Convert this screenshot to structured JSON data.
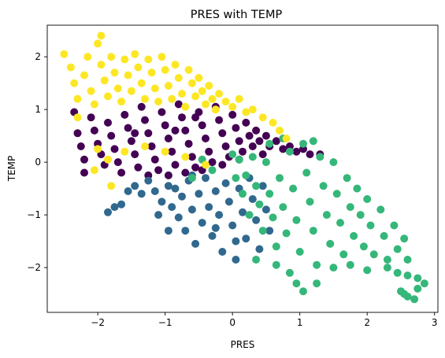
{
  "chart_data": {
    "type": "scatter",
    "title": "PRES with TEMP",
    "xlabel": "PRES",
    "ylabel": "TEMP",
    "xlim": [
      -2.75,
      3.05
    ],
    "ylim": [
      -2.85,
      2.6
    ],
    "xticks": [
      -2,
      -1,
      0,
      1,
      2,
      3
    ],
    "yticks": [
      -2,
      -1,
      0,
      1,
      2
    ],
    "xtick_labels": [
      "−2",
      "−1",
      "0",
      "1",
      "2",
      "3"
    ],
    "ytick_labels": [
      "−2",
      "−1",
      "0",
      "1",
      "2"
    ],
    "grid": false,
    "legend": "none",
    "series": [
      {
        "color": "#440154",
        "points": [
          [
            -2.35,
            0.95
          ],
          [
            -2.3,
            0.55
          ],
          [
            -2.25,
            0.3
          ],
          [
            -2.2,
            0.05
          ],
          [
            -2.2,
            -0.2
          ],
          [
            -2.1,
            0.85
          ],
          [
            -2.05,
            0.6
          ],
          [
            -2.0,
            0.35
          ],
          [
            -1.95,
            0.15
          ],
          [
            -1.9,
            -0.05
          ],
          [
            -1.85,
            0.75
          ],
          [
            -1.8,
            0.5
          ],
          [
            -1.75,
            0.25
          ],
          [
            -1.7,
            0.0
          ],
          [
            -1.65,
            -0.2
          ],
          [
            -1.6,
            0.9
          ],
          [
            -1.55,
            0.65
          ],
          [
            -1.5,
            0.4
          ],
          [
            -1.45,
            0.15
          ],
          [
            -1.4,
            -0.1
          ],
          [
            -1.35,
            1.05
          ],
          [
            -1.3,
            0.8
          ],
          [
            -1.25,
            0.55
          ],
          [
            -1.2,
            0.3
          ],
          [
            -1.15,
            0.05
          ],
          [
            -1.1,
            -0.15
          ],
          [
            -1.05,
            0.95
          ],
          [
            -1.0,
            0.7
          ],
          [
            -0.95,
            0.45
          ],
          [
            -0.9,
            0.2
          ],
          [
            -0.85,
            -0.05
          ],
          [
            -0.8,
            1.1
          ],
          [
            -0.75,
            0.85
          ],
          [
            -0.7,
            0.6
          ],
          [
            -0.65,
            0.35
          ],
          [
            -0.6,
            0.1
          ],
          [
            -0.55,
            -0.1
          ],
          [
            -0.5,
            0.95
          ],
          [
            -0.45,
            0.7
          ],
          [
            -0.4,
            0.45
          ],
          [
            -0.35,
            0.2
          ],
          [
            -0.3,
            0.0
          ],
          [
            -0.25,
            1.05
          ],
          [
            -0.2,
            0.8
          ],
          [
            -0.15,
            0.55
          ],
          [
            -0.1,
            0.3
          ],
          [
            -0.05,
            0.1
          ],
          [
            0.0,
            0.9
          ],
          [
            0.05,
            0.65
          ],
          [
            0.1,
            0.4
          ],
          [
            0.15,
            0.2
          ],
          [
            0.2,
            0.75
          ],
          [
            0.25,
            0.5
          ],
          [
            0.3,
            0.3
          ],
          [
            0.35,
            0.6
          ],
          [
            0.4,
            0.4
          ],
          [
            0.5,
            0.5
          ],
          [
            0.55,
            0.3
          ],
          [
            0.65,
            0.4
          ],
          [
            0.75,
            0.25
          ],
          [
            0.85,
            0.3
          ],
          [
            0.95,
            0.2
          ],
          [
            1.05,
            0.25
          ],
          [
            1.15,
            0.15
          ],
          [
            1.3,
            0.15
          ],
          [
            -0.7,
            -0.2
          ],
          [
            -0.45,
            -0.15
          ],
          [
            -0.15,
            -0.05
          ],
          [
            -1.25,
            -0.25
          ],
          [
            -0.95,
            -0.25
          ],
          [
            -0.55,
            0.85
          ],
          [
            -0.85,
            0.6
          ],
          [
            -1.45,
            0.55
          ],
          [
            0.1,
            0.05
          ],
          [
            0.45,
            0.15
          ]
        ]
      },
      {
        "color": "#31688e",
        "points": [
          [
            -1.85,
            -0.95
          ],
          [
            -1.75,
            -0.85
          ],
          [
            -1.65,
            -0.8
          ],
          [
            -1.55,
            -0.55
          ],
          [
            -1.45,
            -0.45
          ],
          [
            -1.35,
            -0.6
          ],
          [
            -1.25,
            -0.35
          ],
          [
            -1.15,
            -0.55
          ],
          [
            -1.05,
            -0.75
          ],
          [
            -0.95,
            -1.3
          ],
          [
            -0.9,
            -0.85
          ],
          [
            -0.85,
            -0.5
          ],
          [
            -0.8,
            -1.05
          ],
          [
            -0.75,
            -0.65
          ],
          [
            -0.7,
            -1.3
          ],
          [
            -0.65,
            -0.35
          ],
          [
            -0.6,
            -0.9
          ],
          [
            -0.55,
            -1.55
          ],
          [
            -0.5,
            -0.6
          ],
          [
            -0.45,
            -1.15
          ],
          [
            -0.4,
            -0.3
          ],
          [
            -0.35,
            -0.85
          ],
          [
            -0.3,
            -1.4
          ],
          [
            -0.25,
            -0.55
          ],
          [
            -0.2,
            -1.0
          ],
          [
            -0.15,
            -1.7
          ],
          [
            -0.1,
            -0.4
          ],
          [
            -0.05,
            -0.75
          ],
          [
            0.0,
            -1.2
          ],
          [
            0.05,
            -1.85
          ],
          [
            0.1,
            -0.5
          ],
          [
            0.15,
            -0.95
          ],
          [
            0.2,
            -1.45
          ],
          [
            0.25,
            -0.3
          ],
          [
            0.3,
            -0.7
          ],
          [
            0.35,
            -1.1
          ],
          [
            0.4,
            -1.65
          ],
          [
            0.45,
            -0.45
          ],
          [
            0.5,
            -0.9
          ],
          [
            0.55,
            -1.3
          ],
          [
            -0.95,
            -0.45
          ],
          [
            -0.6,
            -0.25
          ],
          [
            -1.1,
            -1.0
          ],
          [
            -0.25,
            -1.25
          ],
          [
            0.05,
            -1.5
          ]
        ]
      },
      {
        "color": "#35b779",
        "points": [
          [
            -0.6,
            -0.3
          ],
          [
            -0.45,
            0.05
          ],
          [
            -0.3,
            -0.15
          ],
          [
            0.0,
            0.15
          ],
          [
            0.05,
            -0.3
          ],
          [
            0.1,
            0.05
          ],
          [
            0.15,
            -0.6
          ],
          [
            0.2,
            -0.25
          ],
          [
            0.25,
            -1.0
          ],
          [
            0.3,
            0.1
          ],
          [
            0.35,
            -0.45
          ],
          [
            0.4,
            -0.8
          ],
          [
            0.45,
            -1.3
          ],
          [
            0.5,
            0.0
          ],
          [
            0.55,
            -0.6
          ],
          [
            0.6,
            -1.05
          ],
          [
            0.65,
            -1.6
          ],
          [
            0.7,
            -0.3
          ],
          [
            0.75,
            -0.85
          ],
          [
            0.8,
            -1.35
          ],
          [
            0.85,
            0.2
          ],
          [
            0.9,
            -0.5
          ],
          [
            0.95,
            -1.1
          ],
          [
            1.0,
            -1.7
          ],
          [
            1.05,
            0.35
          ],
          [
            1.1,
            -0.2
          ],
          [
            1.15,
            -0.75
          ],
          [
            1.2,
            -1.3
          ],
          [
            1.25,
            -1.95
          ],
          [
            1.3,
            0.1
          ],
          [
            1.35,
            -0.45
          ],
          [
            1.4,
            -1.0
          ],
          [
            1.45,
            -1.55
          ],
          [
            1.5,
            0.0
          ],
          [
            1.55,
            -0.6
          ],
          [
            1.6,
            -1.15
          ],
          [
            1.65,
            -1.75
          ],
          [
            1.7,
            -0.3
          ],
          [
            1.75,
            -0.85
          ],
          [
            1.8,
            -1.4
          ],
          [
            1.85,
            -0.5
          ],
          [
            1.9,
            -1.0
          ],
          [
            1.95,
            -1.6
          ],
          [
            2.0,
            -0.7
          ],
          [
            2.05,
            -1.2
          ],
          [
            2.1,
            -1.75
          ],
          [
            2.2,
            -0.9
          ],
          [
            2.25,
            -1.4
          ],
          [
            2.3,
            -1.85
          ],
          [
            2.4,
            -1.2
          ],
          [
            2.45,
            -1.65
          ],
          [
            2.55,
            -1.45
          ],
          [
            2.6,
            -1.85
          ],
          [
            0.75,
            0.45
          ],
          [
            0.55,
            0.35
          ],
          [
            1.2,
            0.4
          ],
          [
            0.95,
            -2.3
          ],
          [
            1.05,
            -2.45
          ],
          [
            1.25,
            -2.3
          ],
          [
            0.85,
            -2.1
          ],
          [
            2.3,
            -2.0
          ],
          [
            2.45,
            -2.1
          ],
          [
            2.6,
            -2.15
          ],
          [
            2.75,
            -2.2
          ],
          [
            2.85,
            -2.3
          ],
          [
            2.5,
            -2.45
          ],
          [
            2.6,
            -2.55
          ],
          [
            2.7,
            -2.6
          ],
          [
            2.75,
            -2.4
          ],
          [
            2.55,
            -2.5
          ],
          [
            0.35,
            -1.85
          ],
          [
            0.65,
            -1.95
          ],
          [
            1.5,
            -2.0
          ],
          [
            1.75,
            -1.95
          ],
          [
            2.0,
            -2.05
          ]
        ]
      },
      {
        "color": "#fde725",
        "points": [
          [
            -2.5,
            2.05
          ],
          [
            -2.4,
            1.8
          ],
          [
            -2.35,
            1.5
          ],
          [
            -2.3,
            1.2
          ],
          [
            -2.2,
            1.65
          ],
          [
            -2.15,
            2.0
          ],
          [
            -2.1,
            1.35
          ],
          [
            -2.05,
            1.1
          ],
          [
            -2.0,
            2.25
          ],
          [
            -1.95,
            2.4
          ],
          [
            -1.95,
            1.85
          ],
          [
            -1.9,
            1.55
          ],
          [
            -1.85,
            1.25
          ],
          [
            -1.8,
            2.0
          ],
          [
            -1.75,
            1.7
          ],
          [
            -1.7,
            1.4
          ],
          [
            -1.65,
            1.15
          ],
          [
            -1.6,
            1.95
          ],
          [
            -1.55,
            1.65
          ],
          [
            -1.5,
            1.35
          ],
          [
            -1.45,
            2.05
          ],
          [
            -1.4,
            1.8
          ],
          [
            -1.35,
            1.5
          ],
          [
            -1.3,
            1.2
          ],
          [
            -1.25,
            1.95
          ],
          [
            -1.2,
            1.7
          ],
          [
            -1.15,
            1.4
          ],
          [
            -1.1,
            1.15
          ],
          [
            -1.05,
            2.0
          ],
          [
            -1.0,
            1.75
          ],
          [
            -0.95,
            1.45
          ],
          [
            -0.9,
            1.2
          ],
          [
            -0.85,
            1.85
          ],
          [
            -0.8,
            1.6
          ],
          [
            -0.75,
            1.3
          ],
          [
            -0.7,
            1.05
          ],
          [
            -0.65,
            1.75
          ],
          [
            -0.6,
            1.5
          ],
          [
            -0.55,
            1.25
          ],
          [
            -0.5,
            1.6
          ],
          [
            -0.45,
            1.35
          ],
          [
            -0.4,
            1.1
          ],
          [
            -0.35,
            1.45
          ],
          [
            -0.3,
            1.2
          ],
          [
            -0.25,
            1.0
          ],
          [
            -0.2,
            1.3
          ],
          [
            -0.1,
            1.15
          ],
          [
            0.0,
            1.05
          ],
          [
            0.1,
            1.2
          ],
          [
            0.2,
            0.95
          ],
          [
            0.3,
            1.0
          ],
          [
            0.45,
            0.85
          ],
          [
            0.6,
            0.75
          ],
          [
            0.7,
            0.6
          ],
          [
            -2.0,
            0.25
          ],
          [
            -1.85,
            0.05
          ],
          [
            -1.8,
            -0.45
          ],
          [
            -2.05,
            -0.15
          ],
          [
            -1.6,
            0.2
          ],
          [
            -1.3,
            0.3
          ],
          [
            -1.0,
            0.2
          ],
          [
            -0.7,
            0.1
          ],
          [
            -0.4,
            -0.05
          ],
          [
            0.8,
            0.45
          ],
          [
            -2.3,
            0.85
          ]
        ]
      }
    ]
  }
}
